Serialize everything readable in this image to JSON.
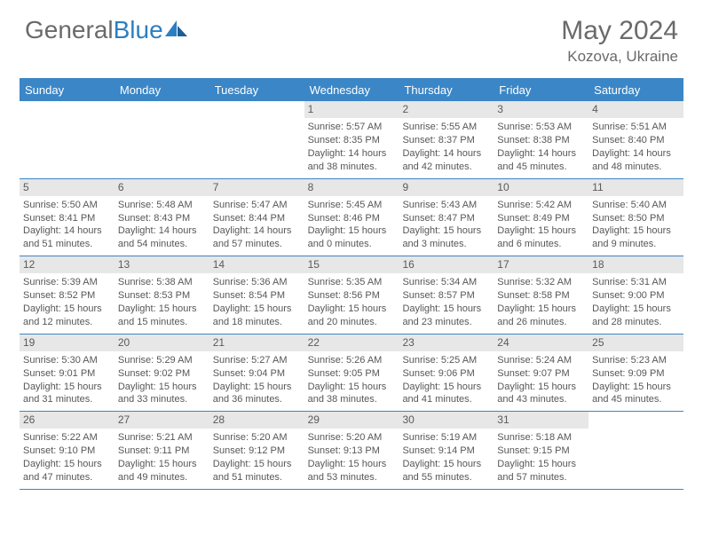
{
  "logo": {
    "part1": "General",
    "part2": "Blue"
  },
  "title": "May 2024",
  "location": "Kozova, Ukraine",
  "colors": {
    "weekday_header_bg": "#3b86c6",
    "weekday_header_text": "#ffffff",
    "daynum_bg": "#e7e7e7",
    "border": "#3b86c6",
    "text": "#5a5a5a",
    "logo_gray": "#6a6a6a",
    "logo_blue": "#2d7fc1"
  },
  "weekdays": [
    "Sunday",
    "Monday",
    "Tuesday",
    "Wednesday",
    "Thursday",
    "Friday",
    "Saturday"
  ],
  "weeks": [
    [
      {
        "num": "",
        "lines": []
      },
      {
        "num": "",
        "lines": []
      },
      {
        "num": "",
        "lines": []
      },
      {
        "num": "1",
        "lines": [
          "Sunrise: 5:57 AM",
          "Sunset: 8:35 PM",
          "Daylight: 14 hours",
          "and 38 minutes."
        ]
      },
      {
        "num": "2",
        "lines": [
          "Sunrise: 5:55 AM",
          "Sunset: 8:37 PM",
          "Daylight: 14 hours",
          "and 42 minutes."
        ]
      },
      {
        "num": "3",
        "lines": [
          "Sunrise: 5:53 AM",
          "Sunset: 8:38 PM",
          "Daylight: 14 hours",
          "and 45 minutes."
        ]
      },
      {
        "num": "4",
        "lines": [
          "Sunrise: 5:51 AM",
          "Sunset: 8:40 PM",
          "Daylight: 14 hours",
          "and 48 minutes."
        ]
      }
    ],
    [
      {
        "num": "5",
        "lines": [
          "Sunrise: 5:50 AM",
          "Sunset: 8:41 PM",
          "Daylight: 14 hours",
          "and 51 minutes."
        ]
      },
      {
        "num": "6",
        "lines": [
          "Sunrise: 5:48 AM",
          "Sunset: 8:43 PM",
          "Daylight: 14 hours",
          "and 54 minutes."
        ]
      },
      {
        "num": "7",
        "lines": [
          "Sunrise: 5:47 AM",
          "Sunset: 8:44 PM",
          "Daylight: 14 hours",
          "and 57 minutes."
        ]
      },
      {
        "num": "8",
        "lines": [
          "Sunrise: 5:45 AM",
          "Sunset: 8:46 PM",
          "Daylight: 15 hours",
          "and 0 minutes."
        ]
      },
      {
        "num": "9",
        "lines": [
          "Sunrise: 5:43 AM",
          "Sunset: 8:47 PM",
          "Daylight: 15 hours",
          "and 3 minutes."
        ]
      },
      {
        "num": "10",
        "lines": [
          "Sunrise: 5:42 AM",
          "Sunset: 8:49 PM",
          "Daylight: 15 hours",
          "and 6 minutes."
        ]
      },
      {
        "num": "11",
        "lines": [
          "Sunrise: 5:40 AM",
          "Sunset: 8:50 PM",
          "Daylight: 15 hours",
          "and 9 minutes."
        ]
      }
    ],
    [
      {
        "num": "12",
        "lines": [
          "Sunrise: 5:39 AM",
          "Sunset: 8:52 PM",
          "Daylight: 15 hours",
          "and 12 minutes."
        ]
      },
      {
        "num": "13",
        "lines": [
          "Sunrise: 5:38 AM",
          "Sunset: 8:53 PM",
          "Daylight: 15 hours",
          "and 15 minutes."
        ]
      },
      {
        "num": "14",
        "lines": [
          "Sunrise: 5:36 AM",
          "Sunset: 8:54 PM",
          "Daylight: 15 hours",
          "and 18 minutes."
        ]
      },
      {
        "num": "15",
        "lines": [
          "Sunrise: 5:35 AM",
          "Sunset: 8:56 PM",
          "Daylight: 15 hours",
          "and 20 minutes."
        ]
      },
      {
        "num": "16",
        "lines": [
          "Sunrise: 5:34 AM",
          "Sunset: 8:57 PM",
          "Daylight: 15 hours",
          "and 23 minutes."
        ]
      },
      {
        "num": "17",
        "lines": [
          "Sunrise: 5:32 AM",
          "Sunset: 8:58 PM",
          "Daylight: 15 hours",
          "and 26 minutes."
        ]
      },
      {
        "num": "18",
        "lines": [
          "Sunrise: 5:31 AM",
          "Sunset: 9:00 PM",
          "Daylight: 15 hours",
          "and 28 minutes."
        ]
      }
    ],
    [
      {
        "num": "19",
        "lines": [
          "Sunrise: 5:30 AM",
          "Sunset: 9:01 PM",
          "Daylight: 15 hours",
          "and 31 minutes."
        ]
      },
      {
        "num": "20",
        "lines": [
          "Sunrise: 5:29 AM",
          "Sunset: 9:02 PM",
          "Daylight: 15 hours",
          "and 33 minutes."
        ]
      },
      {
        "num": "21",
        "lines": [
          "Sunrise: 5:27 AM",
          "Sunset: 9:04 PM",
          "Daylight: 15 hours",
          "and 36 minutes."
        ]
      },
      {
        "num": "22",
        "lines": [
          "Sunrise: 5:26 AM",
          "Sunset: 9:05 PM",
          "Daylight: 15 hours",
          "and 38 minutes."
        ]
      },
      {
        "num": "23",
        "lines": [
          "Sunrise: 5:25 AM",
          "Sunset: 9:06 PM",
          "Daylight: 15 hours",
          "and 41 minutes."
        ]
      },
      {
        "num": "24",
        "lines": [
          "Sunrise: 5:24 AM",
          "Sunset: 9:07 PM",
          "Daylight: 15 hours",
          "and 43 minutes."
        ]
      },
      {
        "num": "25",
        "lines": [
          "Sunrise: 5:23 AM",
          "Sunset: 9:09 PM",
          "Daylight: 15 hours",
          "and 45 minutes."
        ]
      }
    ],
    [
      {
        "num": "26",
        "lines": [
          "Sunrise: 5:22 AM",
          "Sunset: 9:10 PM",
          "Daylight: 15 hours",
          "and 47 minutes."
        ]
      },
      {
        "num": "27",
        "lines": [
          "Sunrise: 5:21 AM",
          "Sunset: 9:11 PM",
          "Daylight: 15 hours",
          "and 49 minutes."
        ]
      },
      {
        "num": "28",
        "lines": [
          "Sunrise: 5:20 AM",
          "Sunset: 9:12 PM",
          "Daylight: 15 hours",
          "and 51 minutes."
        ]
      },
      {
        "num": "29",
        "lines": [
          "Sunrise: 5:20 AM",
          "Sunset: 9:13 PM",
          "Daylight: 15 hours",
          "and 53 minutes."
        ]
      },
      {
        "num": "30",
        "lines": [
          "Sunrise: 5:19 AM",
          "Sunset: 9:14 PM",
          "Daylight: 15 hours",
          "and 55 minutes."
        ]
      },
      {
        "num": "31",
        "lines": [
          "Sunrise: 5:18 AM",
          "Sunset: 9:15 PM",
          "Daylight: 15 hours",
          "and 57 minutes."
        ]
      },
      {
        "num": "",
        "lines": []
      }
    ]
  ]
}
